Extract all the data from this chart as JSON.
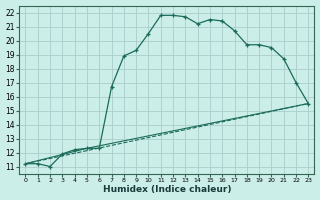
{
  "xlabel": "Humidex (Indice chaleur)",
  "background_color": "#cceee8",
  "grid_color": "#aacccc",
  "line_color": "#1a6b5a",
  "xlim": [
    -0.5,
    23.5
  ],
  "ylim": [
    10.5,
    22.5
  ],
  "xticks": [
    0,
    1,
    2,
    3,
    4,
    5,
    6,
    7,
    8,
    9,
    10,
    11,
    12,
    13,
    14,
    15,
    16,
    17,
    18,
    19,
    20,
    21,
    22,
    23
  ],
  "yticks": [
    11,
    12,
    13,
    14,
    15,
    16,
    17,
    18,
    19,
    20,
    21,
    22
  ],
  "line1_x": [
    0,
    1,
    2,
    3,
    4,
    5,
    6,
    7,
    8,
    9,
    10,
    11,
    12,
    13,
    14,
    15,
    16,
    17,
    18,
    19,
    20,
    21,
    22,
    23
  ],
  "line1_y": [
    11.2,
    11.2,
    11.0,
    11.9,
    12.2,
    12.3,
    12.3,
    16.7,
    18.9,
    19.3,
    20.5,
    21.8,
    21.8,
    21.7,
    21.2,
    21.5,
    21.4,
    20.7,
    19.7,
    19.7,
    19.5,
    18.7,
    17.0,
    15.5
  ],
  "line2_x": [
    0,
    23
  ],
  "line2_y": [
    11.2,
    15.5
  ],
  "line3_x": [
    0,
    23
  ],
  "line3_y": [
    11.2,
    15.5
  ],
  "line4_x": [
    0,
    5,
    23
  ],
  "line4_y": [
    11.2,
    12.3,
    15.5
  ]
}
